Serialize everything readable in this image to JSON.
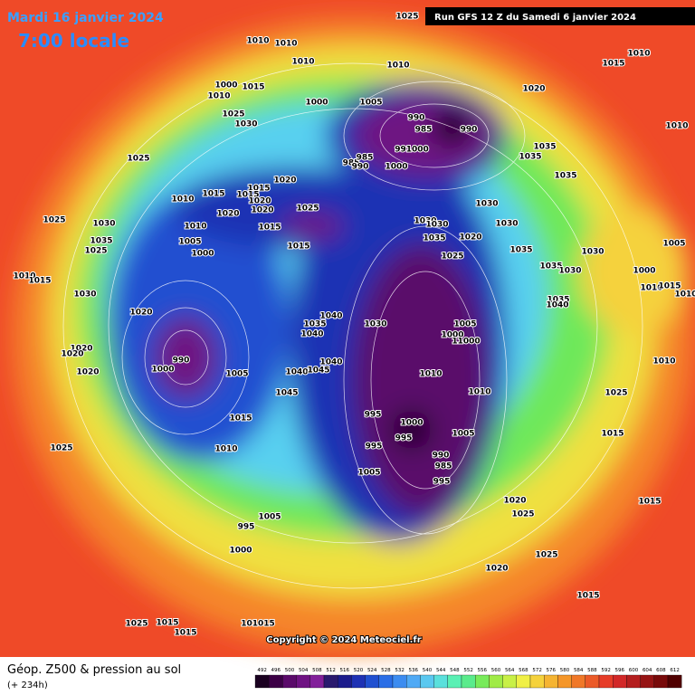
{
  "header": {
    "date": "Mardi 16 janvier 2024",
    "time": "7:00 locale",
    "run": "Run GFS 12 Z du Samedi 6 janvier 2024"
  },
  "copyright": "Copyright © 2024 Meteociel.fr",
  "footer": {
    "title": "Géop. Z500 & pression au sol",
    "lead": "(+ 234h)"
  },
  "legend": {
    "values": [
      492,
      496,
      500,
      504,
      508,
      512,
      516,
      520,
      524,
      528,
      532,
      536,
      540,
      544,
      548,
      552,
      556,
      560,
      564,
      568,
      572,
      576,
      580,
      584,
      588,
      592,
      596,
      600,
      604,
      608,
      612
    ],
    "colors": [
      "#1a0020",
      "#3c0046",
      "#5a0a6a",
      "#6e1282",
      "#82209a",
      "#2a1a6e",
      "#1c1c8c",
      "#1e32b4",
      "#2050d0",
      "#2a6ee6",
      "#3c8cf0",
      "#50aaf5",
      "#5ac8f0",
      "#5ae0dc",
      "#5af0b4",
      "#5aeb8c",
      "#78eb5a",
      "#a0eb46",
      "#c8f046",
      "#f0f046",
      "#f5d23c",
      "#f5b432",
      "#f59628",
      "#f07828",
      "#eb5a28",
      "#e63c28",
      "#d22828",
      "#b41e1e",
      "#961414",
      "#780a0a",
      "#500000"
    ]
  },
  "isobar_labels": [
    "1025",
    "1010",
    "1010",
    "1010",
    "1010",
    "1000",
    "1015",
    "1010",
    "1000",
    "1005",
    "1025",
    "1030",
    "1025",
    "1020",
    "1015",
    "1015",
    "1010",
    "1015",
    "1020",
    "1020",
    "1020",
    "1025",
    "1015",
    "1015",
    "1010",
    "1005",
    "1000",
    "1025",
    "1030",
    "1035",
    "1025",
    "1010",
    "1015",
    "1030",
    "1020",
    "1020",
    "1020",
    "1020",
    "1000",
    "1005",
    "990",
    "1015",
    "1010",
    "1025",
    "1040",
    "1035",
    "1040",
    "1030",
    "1040",
    "1040",
    "1045",
    "1045",
    "990",
    "985",
    "990",
    "991000",
    "1000",
    "985",
    "990",
    "985",
    "1030",
    "1030",
    "1035",
    "1020",
    "1025",
    "1030",
    "1030",
    "1035",
    "1035",
    "1030",
    "1030",
    "1035",
    "1040",
    "1020",
    "1015",
    "1010",
    "1010",
    "1035",
    "1035",
    "1035",
    "1005",
    "1000",
    "1010",
    "1015",
    "1010",
    "1010",
    "1025",
    "1015",
    "1015",
    "1015",
    "1025",
    "1020",
    "1020",
    "1025",
    "1005",
    "1000",
    "11000",
    "1010",
    "1010",
    "995",
    "1000",
    "995",
    "995",
    "990",
    "985",
    "995",
    "1005",
    "1005",
    "995",
    "1005",
    "1000",
    "1015",
    "1015",
    "101015",
    "1025"
  ]
}
